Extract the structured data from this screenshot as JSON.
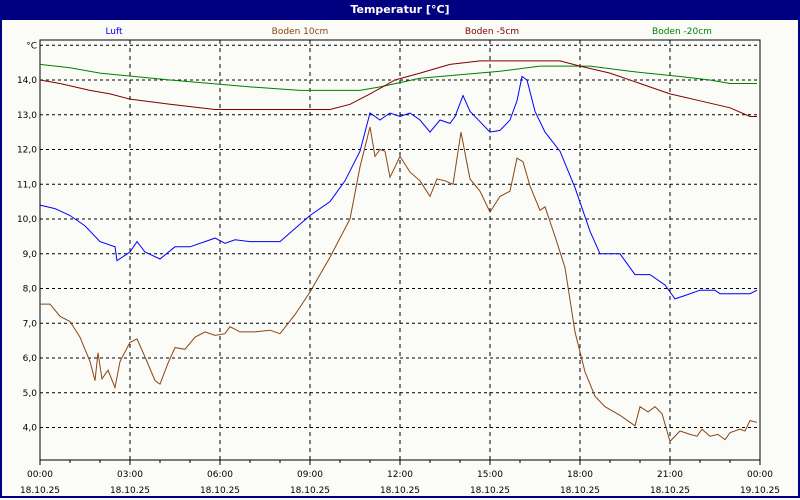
{
  "window": {
    "title": "Temperatur [°C]"
  },
  "chart_data": {
    "type": "line",
    "title": "Temperatur [°C]",
    "ylabel": "°C",
    "ylim": [
      3.0,
      15.0
    ],
    "grid": true,
    "legend_placement": "top",
    "y_ticks": [
      "4,0",
      "5,0",
      "6,0",
      "7,0",
      "8,0",
      "9,0",
      "10,0",
      "11,0",
      "12,0",
      "13,0",
      "14,0"
    ],
    "x_ticks": [
      {
        "time": "00:00",
        "date": "18.10.25"
      },
      {
        "time": "03:00",
        "date": "18.10.25"
      },
      {
        "time": "06:00",
        "date": "18.10.25"
      },
      {
        "time": "09:00",
        "date": "18.10.25"
      },
      {
        "time": "12:00",
        "date": "18.10.25"
      },
      {
        "time": "15:00",
        "date": "18.10.25"
      },
      {
        "time": "18:00",
        "date": "18.10.25"
      },
      {
        "time": "21:00",
        "date": "18.10.25"
      },
      {
        "time": "00:00",
        "date": "19.10.25"
      }
    ],
    "series": [
      {
        "name": "Luft",
        "color": "#0000ff",
        "points": [
          [
            "18.10.25 00:00",
            10.4
          ],
          [
            "18.10.25 00:30",
            10.3
          ],
          [
            "18.10.25 01:00",
            10.1
          ],
          [
            "18.10.25 01:30",
            9.8
          ],
          [
            "18.10.25 02:00",
            9.35
          ],
          [
            "18.10.25 02:30",
            9.2
          ],
          [
            "18.10.25 02:34",
            8.8
          ],
          [
            "18.10.25 03:00",
            9.05
          ],
          [
            "18.10.25 03:14",
            9.35
          ],
          [
            "18.10.25 03:30",
            9.05
          ],
          [
            "18.10.25 04:00",
            8.85
          ],
          [
            "18.10.25 04:30",
            9.2
          ],
          [
            "18.10.25 05:00",
            9.2
          ],
          [
            "18.10.25 05:30",
            9.35
          ],
          [
            "18.10.25 05:50",
            9.45
          ],
          [
            "18.10.25 06:10",
            9.3
          ],
          [
            "18.10.25 06:30",
            9.4
          ],
          [
            "18.10.25 07:00",
            9.35
          ],
          [
            "18.10.25 08:00",
            9.35
          ],
          [
            "18.10.25 08:20",
            9.6
          ],
          [
            "18.10.25 09:00",
            10.1
          ],
          [
            "18.10.25 09:40",
            10.5
          ],
          [
            "18.10.25 10:10",
            11.1
          ],
          [
            "18.10.25 10:40",
            11.95
          ],
          [
            "18.10.25 11:00",
            13.05
          ],
          [
            "18.10.25 11:20",
            12.85
          ],
          [
            "18.10.25 11:40",
            13.05
          ],
          [
            "18.10.25 12:00",
            12.95
          ],
          [
            "18.10.25 12:20",
            13.05
          ],
          [
            "18.10.25 12:40",
            12.85
          ],
          [
            "18.10.25 13:00",
            12.5
          ],
          [
            "18.10.25 13:20",
            12.85
          ],
          [
            "18.10.25 13:40",
            12.75
          ],
          [
            "18.10.25 13:50",
            12.95
          ],
          [
            "18.10.25 14:06",
            13.55
          ],
          [
            "18.10.25 14:20",
            13.1
          ],
          [
            "18.10.25 14:40",
            12.8
          ],
          [
            "18.10.25 15:00",
            12.5
          ],
          [
            "18.10.25 15:20",
            12.55
          ],
          [
            "18.10.25 15:40",
            12.85
          ],
          [
            "18.10.25 15:54",
            13.4
          ],
          [
            "18.10.25 16:04",
            14.1
          ],
          [
            "18.10.25 16:14",
            14.0
          ],
          [
            "18.10.25 16:30",
            13.1
          ],
          [
            "18.10.25 16:50",
            12.5
          ],
          [
            "18.10.25 17:20",
            11.95
          ],
          [
            "18.10.25 17:50",
            10.9
          ],
          [
            "18.10.25 18:20",
            9.65
          ],
          [
            "18.10.25 18:40",
            9.0
          ],
          [
            "18.10.25 19:20",
            9.0
          ],
          [
            "18.10.25 19:50",
            8.4
          ],
          [
            "18.10.25 20:20",
            8.4
          ],
          [
            "18.10.25 20:50",
            8.1
          ],
          [
            "18.10.25 21:10",
            7.7
          ],
          [
            "18.10.25 21:30",
            7.8
          ],
          [
            "18.10.25 22:00",
            7.95
          ],
          [
            "18.10.25 22:30",
            7.95
          ],
          [
            "18.10.25 22:40",
            7.85
          ],
          [
            "18.10.25 23:40",
            7.85
          ],
          [
            "18.10.25 23:54",
            7.95
          ]
        ]
      },
      {
        "name": "Boden 10cm",
        "color": "#8b4513",
        "points": [
          [
            "18.10.25 00:00",
            7.55
          ],
          [
            "18.10.25 00:20",
            7.55
          ],
          [
            "18.10.25 00:40",
            7.2
          ],
          [
            "18.10.25 01:00",
            7.05
          ],
          [
            "18.10.25 01:20",
            6.6
          ],
          [
            "18.10.25 01:40",
            5.9
          ],
          [
            "18.10.25 01:50",
            5.35
          ],
          [
            "18.10.25 01:56",
            6.15
          ],
          [
            "18.10.25 02:04",
            5.4
          ],
          [
            "18.10.25 02:16",
            5.65
          ],
          [
            "18.10.25 02:30",
            5.15
          ],
          [
            "18.10.25 02:40",
            5.9
          ],
          [
            "18.10.25 03:00",
            6.45
          ],
          [
            "18.10.25 03:14",
            6.55
          ],
          [
            "18.10.25 03:34",
            5.9
          ],
          [
            "18.10.25 03:50",
            5.35
          ],
          [
            "18.10.25 04:00",
            5.25
          ],
          [
            "18.10.25 04:16",
            5.85
          ],
          [
            "18.10.25 04:30",
            6.3
          ],
          [
            "18.10.25 04:50",
            6.25
          ],
          [
            "18.10.25 05:10",
            6.6
          ],
          [
            "18.10.25 05:30",
            6.75
          ],
          [
            "18.10.25 05:50",
            6.65
          ],
          [
            "18.10.25 06:10",
            6.7
          ],
          [
            "18.10.25 06:20",
            6.9
          ],
          [
            "18.10.25 06:40",
            6.75
          ],
          [
            "18.10.25 07:10",
            6.75
          ],
          [
            "18.10.25 07:40",
            6.8
          ],
          [
            "18.10.25 08:00",
            6.7
          ],
          [
            "18.10.25 08:30",
            7.25
          ],
          [
            "18.10.25 09:00",
            7.9
          ],
          [
            "18.10.25 09:40",
            8.9
          ],
          [
            "18.10.25 10:20",
            10.0
          ],
          [
            "18.10.25 10:40",
            11.5
          ],
          [
            "18.10.25 11:00",
            12.65
          ],
          [
            "18.10.25 11:10",
            11.8
          ],
          [
            "18.10.25 11:20",
            12.0
          ],
          [
            "18.10.25 11:30",
            11.95
          ],
          [
            "18.10.25 11:40",
            11.2
          ],
          [
            "18.10.25 12:00",
            11.8
          ],
          [
            "18.10.25 12:20",
            11.35
          ],
          [
            "18.10.25 12:40",
            11.1
          ],
          [
            "18.10.25 13:00",
            10.65
          ],
          [
            "18.10.25 13:14",
            11.15
          ],
          [
            "18.10.25 13:30",
            11.1
          ],
          [
            "18.10.25 13:46",
            11.0
          ],
          [
            "18.10.25 14:02",
            12.5
          ],
          [
            "18.10.25 14:20",
            11.15
          ],
          [
            "18.10.25 14:40",
            10.8
          ],
          [
            "18.10.25 15:00",
            10.2
          ],
          [
            "18.10.25 15:20",
            10.65
          ],
          [
            "18.10.25 15:40",
            10.8
          ],
          [
            "18.10.25 15:54",
            11.75
          ],
          [
            "18.10.25 16:06",
            11.65
          ],
          [
            "18.10.25 16:20",
            10.95
          ],
          [
            "18.10.25 16:40",
            10.25
          ],
          [
            "18.10.25 16:50",
            10.35
          ],
          [
            "18.10.25 17:10",
            9.5
          ],
          [
            "18.10.25 17:30",
            8.6
          ],
          [
            "18.10.25 17:50",
            6.75
          ],
          [
            "18.10.25 18:10",
            5.6
          ],
          [
            "18.10.25 18:30",
            4.9
          ],
          [
            "18.10.25 18:50",
            4.6
          ],
          [
            "18.10.25 19:20",
            4.35
          ],
          [
            "18.10.25 19:50",
            4.05
          ],
          [
            "18.10.25 20:00",
            4.6
          ],
          [
            "18.10.25 20:16",
            4.45
          ],
          [
            "18.10.25 20:30",
            4.6
          ],
          [
            "18.10.25 20:44",
            4.4
          ],
          [
            "18.10.25 21:00",
            3.6
          ],
          [
            "18.10.25 21:20",
            3.9
          ],
          [
            "18.10.25 21:40",
            3.8
          ],
          [
            "18.10.25 21:54",
            3.75
          ],
          [
            "18.10.25 22:04",
            3.95
          ],
          [
            "18.10.25 22:20",
            3.75
          ],
          [
            "18.10.25 22:36",
            3.8
          ],
          [
            "18.10.25 22:50",
            3.65
          ],
          [
            "18.10.25 23:00",
            3.85
          ],
          [
            "18.10.25 23:20",
            3.95
          ],
          [
            "18.10.25 23:30",
            3.9
          ],
          [
            "18.10.25 23:40",
            4.2
          ],
          [
            "18.10.25 23:54",
            4.15
          ]
        ]
      },
      {
        "name": "Boden -5cm",
        "color": "#800000",
        "points": [
          [
            "18.10.25 00:00",
            14.0
          ],
          [
            "18.10.25 00:40",
            13.9
          ],
          [
            "18.10.25 01:40",
            13.7
          ],
          [
            "18.10.25 02:20",
            13.6
          ],
          [
            "18.10.25 03:00",
            13.45
          ],
          [
            "18.10.25 04:20",
            13.3
          ],
          [
            "18.10.25 05:50",
            13.15
          ],
          [
            "18.10.25 09:40",
            13.15
          ],
          [
            "18.10.25 10:20",
            13.3
          ],
          [
            "18.10.25 11:00",
            13.6
          ],
          [
            "18.10.25 11:50",
            14.0
          ],
          [
            "18.10.25 12:40",
            14.2
          ],
          [
            "18.10.25 13:40",
            14.45
          ],
          [
            "18.10.25 14:40",
            14.55
          ],
          [
            "18.10.25 17:20",
            14.55
          ],
          [
            "18.10.25 18:00",
            14.4
          ],
          [
            "18.10.25 19:00",
            14.2
          ],
          [
            "18.10.25 20:00",
            13.9
          ],
          [
            "18.10.25 21:00",
            13.6
          ],
          [
            "18.10.25 22:00",
            13.4
          ],
          [
            "18.10.25 23:00",
            13.2
          ],
          [
            "18.10.25 23:40",
            12.95
          ],
          [
            "18.10.25 23:54",
            12.95
          ]
        ]
      },
      {
        "name": "Boden -20cm",
        "color": "#008000",
        "points": [
          [
            "18.10.25 00:00",
            14.45
          ],
          [
            "18.10.25 01:00",
            14.35
          ],
          [
            "18.10.25 02:00",
            14.2
          ],
          [
            "18.10.25 04:20",
            14.0
          ],
          [
            "18.10.25 07:00",
            13.8
          ],
          [
            "18.10.25 08:40",
            13.7
          ],
          [
            "18.10.25 10:40",
            13.7
          ],
          [
            "18.10.25 11:20",
            13.8
          ],
          [
            "18.10.25 12:40",
            14.05
          ],
          [
            "18.10.25 14:00",
            14.15
          ],
          [
            "18.10.25 15:20",
            14.25
          ],
          [
            "18.10.25 16:40",
            14.4
          ],
          [
            "18.10.25 18:20",
            14.4
          ],
          [
            "18.10.25 19:40",
            14.25
          ],
          [
            "18.10.25 21:20",
            14.1
          ],
          [
            "18.10.25 22:20",
            14.0
          ],
          [
            "18.10.25 23:00",
            13.9
          ],
          [
            "18.10.25 23:54",
            13.9
          ]
        ]
      }
    ]
  }
}
